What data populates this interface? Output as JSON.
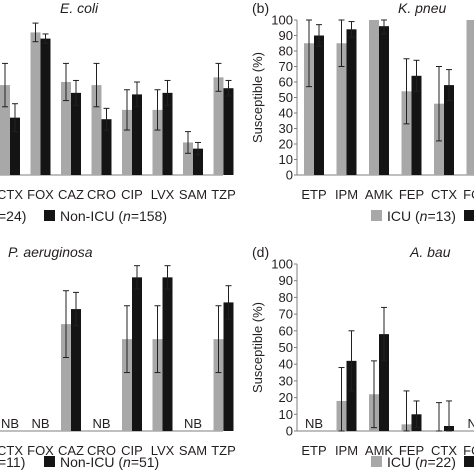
{
  "colors": {
    "icu": "#a8a8a8",
    "non_icu": "#141414",
    "axis": "#7f7f7f",
    "error": "#231f20",
    "text": "#231f20"
  },
  "chart_data": [
    {
      "panel_label": "",
      "title": "E. coli",
      "type": "bar",
      "ylabel": "",
      "ylim": [
        0,
        100
      ],
      "yticks": [],
      "categories": [
        "CTX",
        "FOX",
        "CAZ",
        "CRO",
        "CIP",
        "LVX",
        "SAM",
        "TZP"
      ],
      "series": [
        {
          "values": [
            58,
            92,
            60,
            58,
            42,
            42,
            21,
            63
          ],
          "err": [
            14,
            6,
            12,
            14,
            13,
            13,
            7,
            9
          ]
        },
        {
          "values": [
            37,
            88,
            53,
            36,
            52,
            53,
            17,
            56
          ],
          "err": [
            9,
            3,
            8,
            7,
            8,
            8,
            4,
            5
          ]
        }
      ],
      "nb": [],
      "legend": {
        "icu": "=24)",
        "non_icu_prefix": "Non-ICU (",
        "n_symbol": "n",
        "non_icu_suffix": "=158)"
      }
    },
    {
      "panel_label": "(b)",
      "title": "K. pneu",
      "type": "bar",
      "ylabel": "Susceptible (%)",
      "ylim": [
        0,
        100
      ],
      "yticks": [
        "0",
        "10",
        "20",
        "30",
        "40",
        "50",
        "60",
        "70",
        "80",
        "90",
        "100"
      ],
      "categories": [
        "ETP",
        "IPM",
        "AMK",
        "FEP",
        "CTX",
        "FOX"
      ],
      "series": [
        {
          "values": [
            85,
            85,
            100,
            54,
            46,
            100
          ],
          "err": [
            28,
            15,
            0,
            21,
            24,
            0
          ]
        },
        {
          "values": [
            90,
            94,
            96,
            64,
            58,
            100
          ],
          "err": [
            7,
            5,
            5,
            10,
            10,
            0
          ]
        }
      ],
      "nb": [],
      "legend": {
        "icu_prefix": "ICU (",
        "n_symbol": "n",
        "icu_suffix": "=13)"
      }
    },
    {
      "panel_label": "",
      "title": "P. aeruginosa",
      "type": "bar",
      "ylabel": "",
      "ylim": [
        0,
        100
      ],
      "yticks": [],
      "categories": [
        "CTX",
        "FOX",
        "CAZ",
        "CRO",
        "CIP",
        "LVX",
        "SAM",
        "TZP"
      ],
      "series": [
        {
          "values": [
            null,
            null,
            64,
            null,
            55,
            55,
            null,
            55
          ],
          "err": [
            0,
            0,
            20,
            0,
            20,
            20,
            0,
            20
          ]
        },
        {
          "values": [
            null,
            null,
            73,
            null,
            92,
            92,
            null,
            77
          ],
          "err": [
            0,
            0,
            10,
            0,
            7,
            7,
            0,
            10
          ]
        }
      ],
      "nb": [
        "NB",
        "NB",
        "",
        "NB",
        "",
        "",
        "NB",
        ""
      ],
      "legend": {
        "icu": "=11)",
        "non_icu_prefix": "Non-ICU (",
        "n_symbol": "n",
        "non_icu_suffix": "=51)"
      }
    },
    {
      "panel_label": "(d)",
      "title": "A. bau",
      "type": "bar",
      "ylabel": "Susceptible (%)",
      "ylim": [
        0,
        100
      ],
      "yticks": [
        "0",
        "10",
        "20",
        "30",
        "40",
        "50",
        "60",
        "70",
        "80",
        "90",
        "100"
      ],
      "categories": [
        "ETP",
        "IPM",
        "AMK",
        "FEP",
        "CTX",
        "FOX"
      ],
      "series": [
        {
          "values": [
            null,
            18,
            22,
            4,
            0,
            null
          ],
          "err": [
            0,
            20,
            20,
            20,
            17,
            0
          ]
        },
        {
          "values": [
            null,
            42,
            58,
            10,
            3,
            null
          ],
          "err": [
            0,
            18,
            16,
            8,
            15,
            0
          ]
        }
      ],
      "nb": [
        "NB",
        "",
        "",
        "",
        "",
        "NB"
      ],
      "legend": {
        "icu_prefix": "ICU (",
        "n_symbol": "n",
        "icu_suffix": "=22)"
      }
    }
  ]
}
